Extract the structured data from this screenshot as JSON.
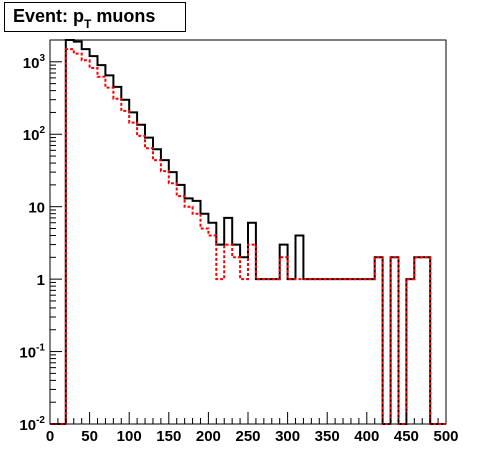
{
  "title": {
    "prefix": "Event: p",
    "subscript": "T",
    "suffix": " muons"
  },
  "chart_data": {
    "type": "step",
    "xlim": [
      0,
      500
    ],
    "ylim": [
      0.01,
      2000
    ],
    "yscale": "log",
    "grid": false,
    "bin_width": 10,
    "x_ticks": [
      "0",
      "50",
      "100",
      "150",
      "200",
      "250",
      "300",
      "350",
      "400",
      "450",
      "500"
    ],
    "x_tick_values": [
      0,
      50,
      100,
      150,
      200,
      250,
      300,
      350,
      400,
      450,
      500
    ],
    "y_ticks": [
      {
        "value": 0.01,
        "base": "10",
        "exp": "-2"
      },
      {
        "value": 0.1,
        "base": "10",
        "exp": "-1"
      },
      {
        "value": 1,
        "base": "1",
        "exp": ""
      },
      {
        "value": 10,
        "base": "10",
        "exp": ""
      },
      {
        "value": 100,
        "base": "10",
        "exp": "2"
      },
      {
        "value": 1000,
        "base": "10",
        "exp": "3"
      }
    ],
    "series": [
      {
        "color": "#000000",
        "style": "solid",
        "values": [
          0.01,
          0.01,
          2000,
          1900,
          1500,
          1200,
          900,
          650,
          450,
          300,
          200,
          135,
          90,
          62,
          44,
          30,
          20,
          13,
          12,
          8,
          6,
          3,
          7,
          3,
          2,
          6,
          1,
          1,
          1,
          3,
          1,
          4,
          1,
          1,
          1,
          1,
          1,
          1,
          1,
          1,
          1,
          2,
          0.01,
          2,
          0.01,
          1,
          2,
          2,
          0.01,
          0.01
        ]
      },
      {
        "color": "#ff0000",
        "style": "dashed",
        "values": [
          0.01,
          0.01,
          1500,
          1300,
          1050,
          820,
          620,
          440,
          310,
          210,
          145,
          95,
          64,
          44,
          31,
          21,
          14,
          10,
          8,
          5,
          4,
          1,
          3,
          2,
          1,
          3,
          1,
          1,
          1,
          2,
          1,
          1,
          1,
          1,
          1,
          1,
          1,
          1,
          1,
          1,
          1,
          2,
          0.01,
          2,
          0.01,
          1,
          2,
          2,
          0.01,
          0.01
        ]
      }
    ]
  }
}
